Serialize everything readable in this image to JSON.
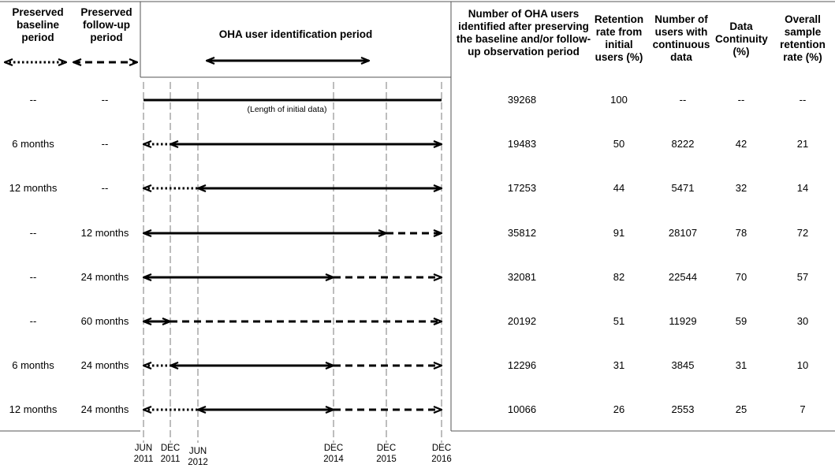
{
  "headers": {
    "baseline": "Preserved baseline period",
    "followup": "Preserved follow-up period",
    "period": "OHA user identification period",
    "users": "Number of OHA users identified after preserving the baseline and/or follow-up observation period",
    "retention": "Retention rate from initial users (%)",
    "continuous": "Number of users with continuous data",
    "continuity": "Data Continuity (%)",
    "overall": "Overall sample retention rate (%)"
  },
  "caption": "(Length of initial data)",
  "ticks": [
    {
      "month": "JUN",
      "year": "2011"
    },
    {
      "month": "DEC",
      "year": "2011"
    },
    {
      "month": "JUN",
      "year": "2012"
    },
    {
      "month": "DEC",
      "year": "2014"
    },
    {
      "month": "DEC",
      "year": "2015"
    },
    {
      "month": "DEC",
      "year": "2016"
    }
  ],
  "rows": [
    {
      "baseline": "--",
      "followup": "--",
      "users": "39268",
      "retention": "100",
      "continuous": "--",
      "continuity": "--",
      "overall": "--",
      "segments": [
        {
          "style": "solid",
          "from": 0,
          "to": 5,
          "start_arrow": false,
          "end_arrow": false
        }
      ]
    },
    {
      "baseline": "6 months",
      "followup": "--",
      "users": "19483",
      "retention": "50",
      "continuous": "8222",
      "continuity": "42",
      "overall": "21",
      "segments": [
        {
          "style": "dotted",
          "from": 0,
          "to": 1,
          "start_arrow": true,
          "end_arrow": false
        },
        {
          "style": "solid",
          "from": 1,
          "to": 5,
          "start_arrow": true,
          "end_arrow": true
        }
      ]
    },
    {
      "baseline": "12 months",
      "followup": "--",
      "users": "17253",
      "retention": "44",
      "continuous": "5471",
      "continuity": "32",
      "overall": "14",
      "segments": [
        {
          "style": "dotted",
          "from": 0,
          "to": 2,
          "start_arrow": true,
          "end_arrow": false
        },
        {
          "style": "solid",
          "from": 2,
          "to": 5,
          "start_arrow": true,
          "end_arrow": true
        }
      ]
    },
    {
      "baseline": "--",
      "followup": "12 months",
      "users": "35812",
      "retention": "91",
      "continuous": "28107",
      "continuity": "78",
      "overall": "72",
      "segments": [
        {
          "style": "solid",
          "from": 0,
          "to": 4,
          "start_arrow": true,
          "end_arrow": true
        },
        {
          "style": "dashed",
          "from": 4,
          "to": 5,
          "start_arrow": false,
          "end_arrow": true
        }
      ]
    },
    {
      "baseline": "--",
      "followup": "24 months",
      "users": "32081",
      "retention": "82",
      "continuous": "22544",
      "continuity": "70",
      "overall": "57",
      "segments": [
        {
          "style": "solid",
          "from": 0,
          "to": 3,
          "start_arrow": true,
          "end_arrow": true
        },
        {
          "style": "dashed",
          "from": 3,
          "to": 5,
          "start_arrow": false,
          "end_arrow": true
        }
      ]
    },
    {
      "baseline": "--",
      "followup": "60 months",
      "users": "20192",
      "retention": "51",
      "continuous": "11929",
      "continuity": "59",
      "overall": "30",
      "segments": [
        {
          "style": "solid",
          "from": 0,
          "to": 1,
          "start_arrow": true,
          "end_arrow": true
        },
        {
          "style": "dashed",
          "from": 1,
          "to": 5,
          "start_arrow": false,
          "end_arrow": true
        }
      ]
    },
    {
      "baseline": "6 months",
      "followup": "24 months",
      "users": "12296",
      "retention": "31",
      "continuous": "3845",
      "continuity": "31",
      "overall": "10",
      "segments": [
        {
          "style": "dotted",
          "from": 0,
          "to": 1,
          "start_arrow": true,
          "end_arrow": false
        },
        {
          "style": "solid",
          "from": 1,
          "to": 3,
          "start_arrow": true,
          "end_arrow": true
        },
        {
          "style": "dashed",
          "from": 3,
          "to": 5,
          "start_arrow": false,
          "end_arrow": true
        }
      ]
    },
    {
      "baseline": "12 months",
      "followup": "24 months",
      "users": "10066",
      "retention": "26",
      "continuous": "2553",
      "continuity": "25",
      "overall": "7",
      "segments": [
        {
          "style": "dotted",
          "from": 0,
          "to": 2,
          "start_arrow": true,
          "end_arrow": false
        },
        {
          "style": "solid",
          "from": 2,
          "to": 3,
          "start_arrow": true,
          "end_arrow": true
        },
        {
          "style": "dashed",
          "from": 3,
          "to": 5,
          "start_arrow": false,
          "end_arrow": true
        }
      ]
    }
  ],
  "colors": {
    "ink": "#000000",
    "guide": "#bdbdbd",
    "rule": "#555555"
  }
}
